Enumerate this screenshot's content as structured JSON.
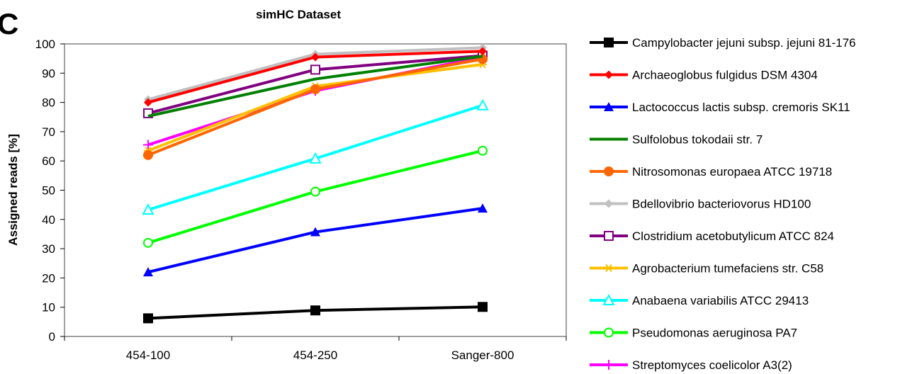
{
  "chart_data": {
    "type": "line",
    "title": "simHC Dataset",
    "panel_label": "C",
    "xlabel": "",
    "ylabel": "Assigned reads [%]",
    "ylim": [
      0,
      100
    ],
    "yticks": [
      0,
      10,
      20,
      30,
      40,
      50,
      60,
      70,
      80,
      90,
      100
    ],
    "categories": [
      "454-100",
      "454-250",
      "Sanger-800"
    ],
    "grid": false,
    "legend_position": "right",
    "series": [
      {
        "name": "Campylobacter jejuni subsp. jejuni 81-176",
        "color": "#000000",
        "marker": "filled-square",
        "values": [
          6.2,
          8.9,
          10.1
        ]
      },
      {
        "name": "Archaeoglobus fulgidus DSM 4304",
        "color": "#ff0000",
        "marker": "filled-diamond",
        "values": [
          80,
          95.5,
          97.5
        ]
      },
      {
        "name": "Lactococcus lactis subsp. cremoris SK11",
        "color": "#0000ff",
        "marker": "filled-triangle",
        "values": [
          22,
          35.7,
          43.8
        ]
      },
      {
        "name": "Sulfolobus tokodaii str. 7",
        "color": "#008000",
        "marker": "none",
        "values": [
          75.3,
          88,
          95.8
        ]
      },
      {
        "name": "Nitrosomonas europaea ATCC 19718",
        "color": "#ff6600",
        "marker": "filled-circle",
        "values": [
          62,
          84.5,
          94.8
        ]
      },
      {
        "name": "Bdellovibrio bacteriovorus HD100",
        "color": "#c0c0c0",
        "marker": "filled-diamond",
        "values": [
          81,
          96.5,
          98.7
        ]
      },
      {
        "name": "Clostridium acetobutylicum ATCC 824",
        "color": "#800080",
        "marker": "open-square",
        "values": [
          76.3,
          91.2,
          96
        ]
      },
      {
        "name": "Agrobacterium tumefaciens str. C58",
        "color": "#ffc000",
        "marker": "asterisk",
        "values": [
          63.5,
          85.5,
          93
        ]
      },
      {
        "name": "Anabaena variabilis ATCC 29413",
        "color": "#00ffff",
        "marker": "open-triangle",
        "values": [
          43.3,
          60.8,
          79
        ]
      },
      {
        "name": "Pseudomonas aeruginosa PA7",
        "color": "#00ff00",
        "marker": "open-circle",
        "values": [
          32,
          49.5,
          63.5
        ]
      },
      {
        "name": "Streptomyces coelicolor A3(2)",
        "color": "#ff00ff",
        "marker": "plus",
        "values": [
          65.5,
          84,
          95.5
        ]
      }
    ]
  }
}
